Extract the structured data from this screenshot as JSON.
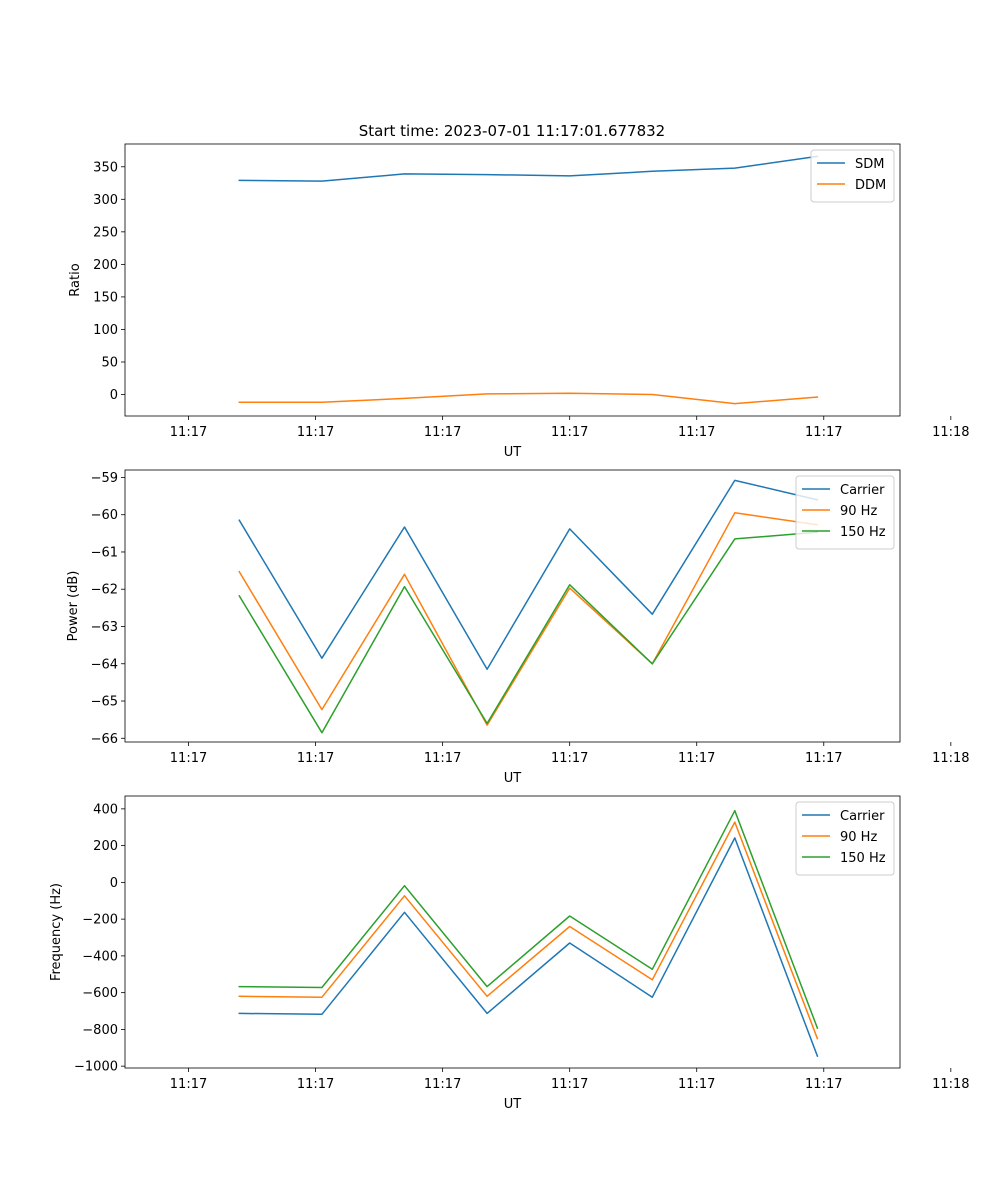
{
  "figure_title": "Start time: 2023-07-01 11:17:01.677832",
  "chart_data": [
    {
      "type": "line",
      "title": "Start time: 2023-07-01 11:17:01.677832",
      "xlabel": "UT",
      "ylabel": "Ratio",
      "x_tick_labels": [
        "11:17",
        "11:17",
        "11:17",
        "11:17",
        "11:17",
        "11:17",
        "11:18"
      ],
      "x": [
        0.4,
        1.05,
        1.7,
        2.35,
        3.0,
        3.65,
        4.3,
        4.95
      ],
      "xlim": [
        -0.5,
        5.6
      ],
      "xticks": [
        0,
        1,
        2,
        3,
        4,
        5,
        6
      ],
      "ylim": [
        -33,
        385
      ],
      "yticks": [
        0,
        50,
        100,
        150,
        200,
        250,
        300,
        350
      ],
      "ytick_labels": [
        "0",
        "50",
        "100",
        "150",
        "200",
        "250",
        "300",
        "350"
      ],
      "legend_position": "top-right",
      "series": [
        {
          "name": "SDM",
          "color": "#1f77b4",
          "values": [
            329,
            328,
            339,
            338,
            336,
            343,
            348,
            366
          ]
        },
        {
          "name": "DDM",
          "color": "#ff7f0e",
          "values": [
            -12,
            -12,
            -6,
            1,
            2,
            0,
            -14,
            -4
          ]
        }
      ]
    },
    {
      "type": "line",
      "xlabel": "UT",
      "ylabel": "Power (dB)",
      "x_tick_labels": [
        "11:17",
        "11:17",
        "11:17",
        "11:17",
        "11:17",
        "11:17",
        "11:18"
      ],
      "x": [
        0.4,
        1.05,
        1.7,
        2.35,
        3.0,
        3.65,
        4.3,
        4.95
      ],
      "xlim": [
        -0.5,
        5.6
      ],
      "xticks": [
        0,
        1,
        2,
        3,
        4,
        5,
        6
      ],
      "ylim": [
        -66.1,
        -58.8
      ],
      "yticks": [
        -66,
        -65,
        -64,
        -63,
        -62,
        -61,
        -60,
        -59
      ],
      "ytick_labels": [
        "−66",
        "−65",
        "−64",
        "−63",
        "−62",
        "−61",
        "−60",
        "−59"
      ],
      "legend_position": "top-right",
      "series": [
        {
          "name": "Carrier",
          "color": "#1f77b4",
          "values": [
            -60.15,
            -63.85,
            -60.33,
            -64.15,
            -60.38,
            -62.67,
            -59.08,
            -59.6
          ]
        },
        {
          "name": "90 Hz",
          "color": "#ff7f0e",
          "values": [
            -61.53,
            -65.23,
            -61.6,
            -65.65,
            -61.97,
            -64.0,
            -59.95,
            -60.27
          ]
        },
        {
          "name": "150 Hz",
          "color": "#2ca02c",
          "values": [
            -62.18,
            -65.85,
            -61.93,
            -65.6,
            -61.88,
            -64.0,
            -60.65,
            -60.47
          ]
        }
      ]
    },
    {
      "type": "line",
      "xlabel": "UT",
      "ylabel": "Frequency (Hz)",
      "x_tick_labels": [
        "11:17",
        "11:17",
        "11:17",
        "11:17",
        "11:17",
        "11:17",
        "11:18"
      ],
      "x": [
        0.4,
        1.05,
        1.7,
        2.35,
        3.0,
        3.65,
        4.3,
        4.95
      ],
      "xlim": [
        -0.5,
        5.6
      ],
      "xticks": [
        0,
        1,
        2,
        3,
        4,
        5,
        6
      ],
      "ylim": [
        -1010,
        470
      ],
      "yticks": [
        -1000,
        -800,
        -600,
        -400,
        -200,
        0,
        200,
        400
      ],
      "ytick_labels": [
        "−1000",
        "−800",
        "−600",
        "−400",
        "−200",
        "0",
        "200",
        "400"
      ],
      "legend_position": "top-right",
      "series": [
        {
          "name": "Carrier",
          "color": "#1f77b4",
          "values": [
            -713,
            -718,
            -163,
            -713,
            -330,
            -625,
            242,
            -945
          ]
        },
        {
          "name": "90 Hz",
          "color": "#ff7f0e",
          "values": [
            -620,
            -625,
            -73,
            -620,
            -240,
            -530,
            328,
            -850
          ]
        },
        {
          "name": "150 Hz",
          "color": "#2ca02c",
          "values": [
            -567,
            -572,
            -18,
            -567,
            -183,
            -473,
            390,
            -793
          ]
        }
      ]
    }
  ]
}
